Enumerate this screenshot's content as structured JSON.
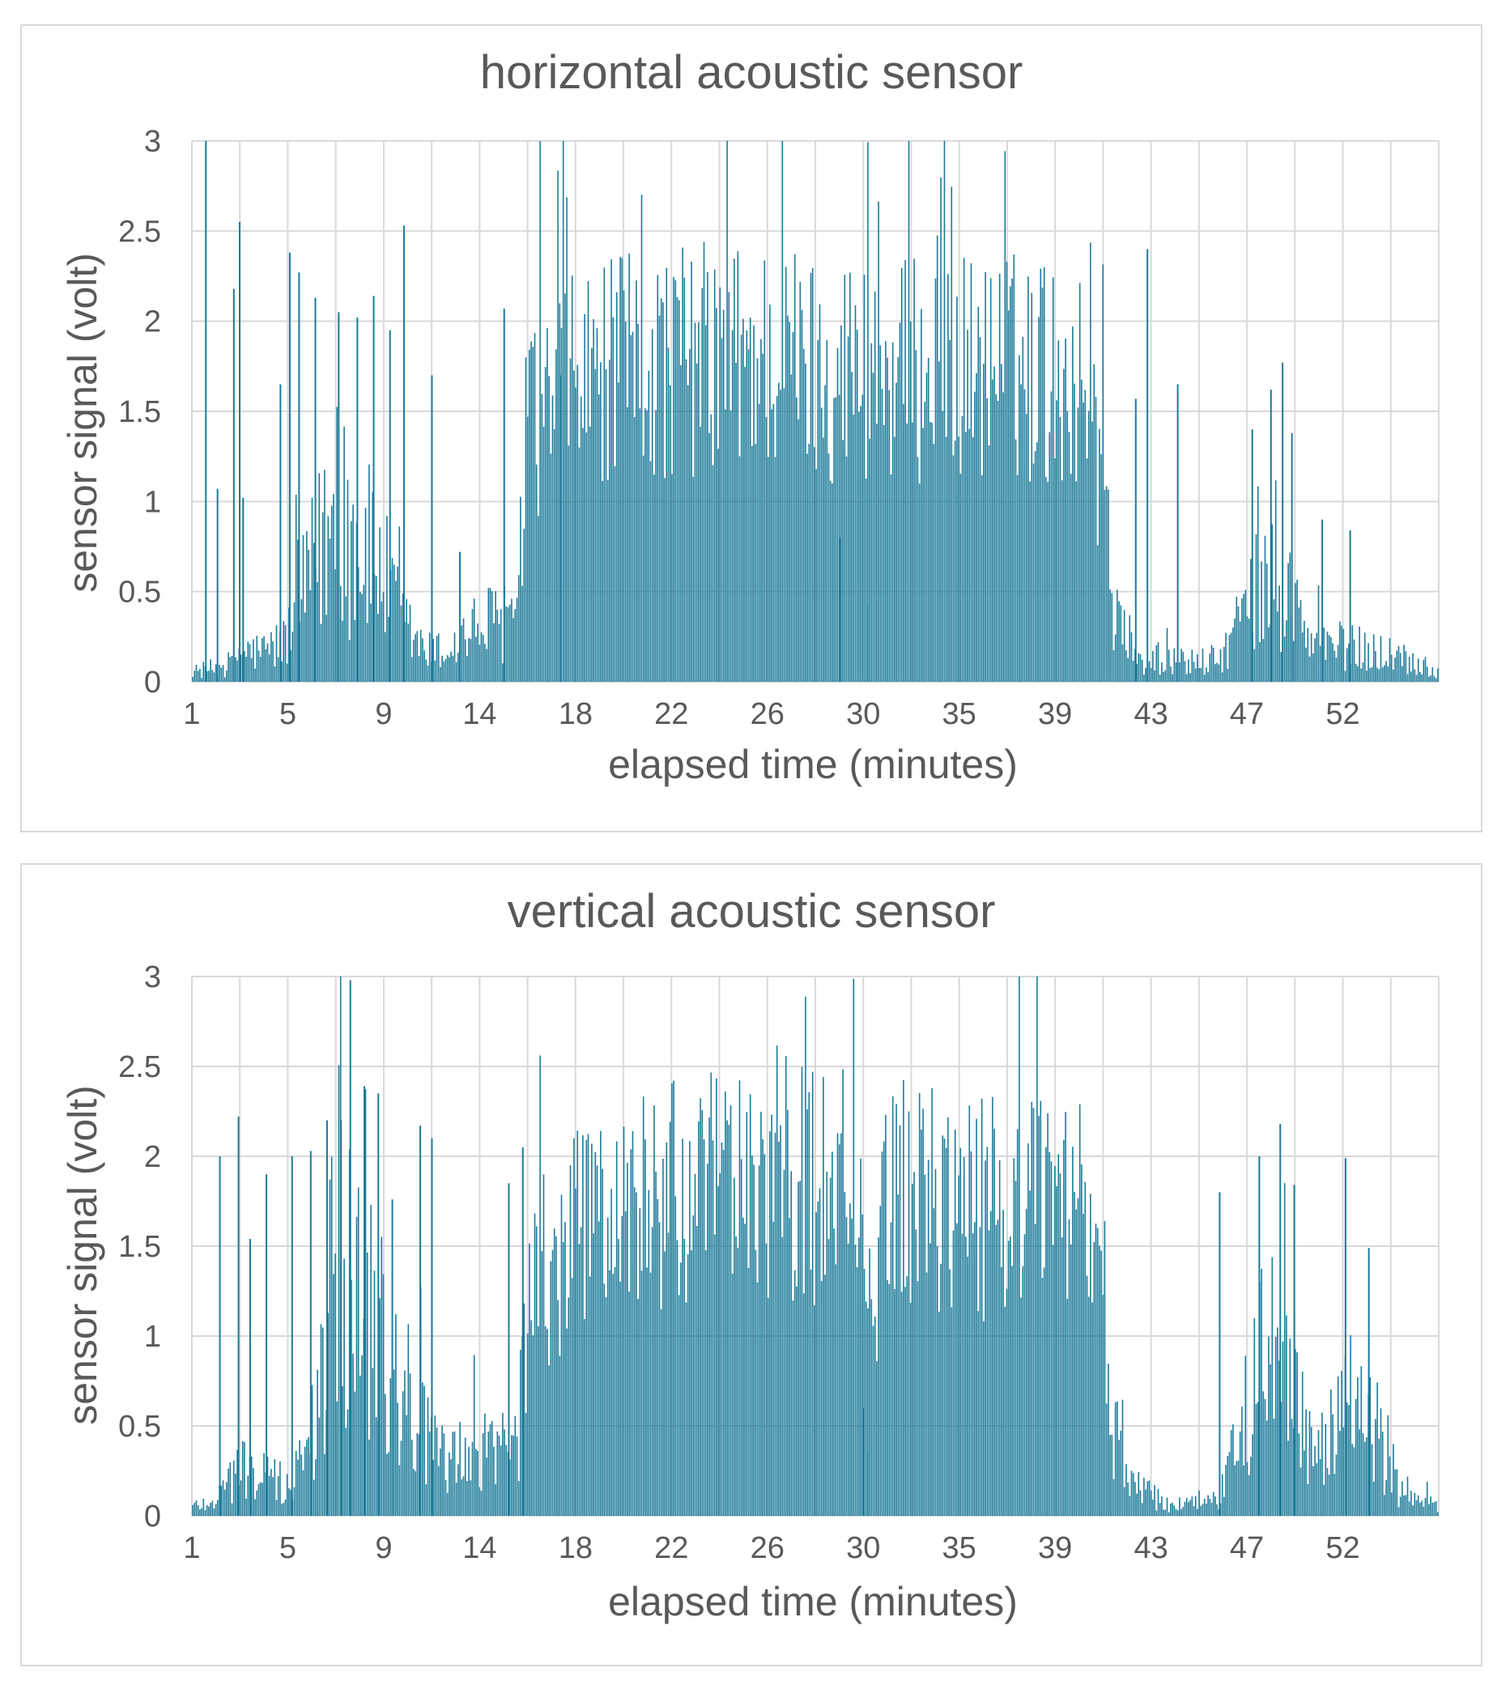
{
  "chart_data": [
    {
      "type": "bar",
      "title": "horizontal acoustic sensor",
      "xlabel": "elapsed time (minutes)",
      "ylabel": "sensor signal (volt)",
      "x_tick_labels": [
        "1",
        "5",
        "9",
        "14",
        "18",
        "22",
        "26",
        "30",
        "35",
        "39",
        "43",
        "47",
        "52"
      ],
      "y_tick_labels": [
        "0",
        "0.5",
        "1",
        "1.5",
        "2",
        "2.5",
        "3"
      ],
      "xlim": [
        1,
        54.5
      ],
      "ylim": [
        0,
        3
      ],
      "grid": true,
      "color": "#1b7a99",
      "envelope": [
        [
          1,
          0.05
        ],
        [
          2.5,
          0.08
        ],
        [
          3,
          0.15
        ],
        [
          4,
          0.15
        ],
        [
          5,
          0.2
        ],
        [
          6,
          0.5
        ],
        [
          7,
          0.8
        ],
        [
          8,
          0.7
        ],
        [
          9,
          0.6
        ],
        [
          10,
          0.3
        ],
        [
          11,
          0.15
        ],
        [
          12,
          0.15
        ],
        [
          13,
          0.25
        ],
        [
          14,
          0.3
        ],
        [
          15,
          0.3
        ],
        [
          15.5,
          1.6
        ],
        [
          16.5,
          1.8
        ],
        [
          17.5,
          1.9
        ],
        [
          20,
          2.0
        ],
        [
          23,
          2.05
        ],
        [
          26,
          2.05
        ],
        [
          28,
          2.0
        ],
        [
          30,
          2.0
        ],
        [
          31,
          1.95
        ],
        [
          33,
          2.0
        ],
        [
          36,
          2.0
        ],
        [
          38,
          1.95
        ],
        [
          39.5,
          1.85
        ],
        [
          40.5,
          0.5
        ],
        [
          41.5,
          0.1
        ],
        [
          45,
          0.1
        ],
        [
          46,
          0.3
        ],
        [
          47,
          0.5
        ],
        [
          48,
          0.45
        ],
        [
          49,
          0.2
        ],
        [
          52,
          0.15
        ],
        [
          53,
          0.12
        ],
        [
          54.5,
          0.05
        ]
      ],
      "spikes": [
        [
          1.6,
          3.0
        ],
        [
          2.1,
          1.07
        ],
        [
          2.8,
          2.18
        ],
        [
          3.05,
          2.55
        ],
        [
          3.2,
          1.02
        ],
        [
          4.8,
          1.65
        ],
        [
          5.2,
          2.38
        ],
        [
          5.6,
          2.27
        ],
        [
          6.3,
          2.13
        ],
        [
          7.3,
          2.05
        ],
        [
          8.1,
          2.02
        ],
        [
          8.8,
          2.14
        ],
        [
          9.5,
          1.95
        ],
        [
          10.1,
          2.53
        ],
        [
          11.3,
          1.7
        ],
        [
          12.5,
          0.72
        ],
        [
          14.4,
          2.07
        ],
        [
          41.5,
          1.57
        ],
        [
          42.0,
          2.4
        ],
        [
          43.3,
          1.65
        ],
        [
          46.5,
          1.4
        ],
        [
          47.3,
          1.62
        ],
        [
          47.8,
          1.77
        ],
        [
          48.2,
          1.38
        ],
        [
          49.5,
          0.9
        ],
        [
          50.7,
          0.84
        ]
      ],
      "gaps": [
        [
          30.0,
          0.42
        ],
        [
          28.8,
          0.8
        ],
        [
          16.8,
          1.7
        ]
      ]
    },
    {
      "type": "bar",
      "title": "vertical acoustic sensor",
      "xlabel": "elapsed time (minutes)",
      "ylabel": "sensor signal (volt)",
      "x_tick_labels": [
        "1",
        "5",
        "9",
        "14",
        "18",
        "22",
        "26",
        "30",
        "35",
        "39",
        "43",
        "47",
        "52"
      ],
      "y_tick_labels": [
        "0",
        "0.5",
        "1",
        "1.5",
        "2",
        "2.5",
        "3"
      ],
      "xlim": [
        1,
        54.5
      ],
      "ylim": [
        0,
        3
      ],
      "grid": true,
      "color": "#1b7a99",
      "envelope": [
        [
          1,
          0.05
        ],
        [
          2,
          0.08
        ],
        [
          3,
          0.25
        ],
        [
          4,
          0.2
        ],
        [
          5,
          0.15
        ],
        [
          6,
          0.3
        ],
        [
          7,
          1.1
        ],
        [
          8,
          1.2
        ],
        [
          9,
          1.0
        ],
        [
          10,
          0.7
        ],
        [
          11,
          0.4
        ],
        [
          12,
          0.25
        ],
        [
          13,
          0.3
        ],
        [
          14,
          0.35
        ],
        [
          15,
          0.4
        ],
        [
          15.5,
          1.5
        ],
        [
          16.5,
          1.4
        ],
        [
          17.5,
          1.8
        ],
        [
          20,
          2.0
        ],
        [
          23,
          2.05
        ],
        [
          26,
          2.2
        ],
        [
          28,
          2.05
        ],
        [
          29.5,
          2.0
        ],
        [
          30,
          1.2
        ],
        [
          31,
          2.1
        ],
        [
          33,
          2.0
        ],
        [
          36,
          1.95
        ],
        [
          38,
          1.95
        ],
        [
          39.5,
          1.9
        ],
        [
          40.5,
          0.5
        ],
        [
          41.5,
          0.15
        ],
        [
          43,
          0.05
        ],
        [
          45,
          0.1
        ],
        [
          46,
          0.4
        ],
        [
          47,
          0.8
        ],
        [
          48,
          0.7
        ],
        [
          49,
          0.3
        ],
        [
          50,
          0.4
        ],
        [
          51,
          0.6
        ],
        [
          52,
          0.4
        ],
        [
          53,
          0.1
        ],
        [
          54.5,
          0.05
        ]
      ],
      "spikes": [
        [
          2.2,
          2.0
        ],
        [
          3.0,
          2.22
        ],
        [
          3.5,
          1.54
        ],
        [
          4.2,
          1.9
        ],
        [
          5.3,
          2.0
        ],
        [
          6.1,
          2.03
        ],
        [
          6.8,
          2.2
        ],
        [
          7.4,
          2.2
        ],
        [
          7.8,
          2.98
        ],
        [
          8.4,
          2.39
        ],
        [
          9.0,
          2.35
        ],
        [
          9.6,
          1.76
        ],
        [
          10.8,
          2.17
        ],
        [
          11.3,
          2.1
        ],
        [
          14.6,
          1.85
        ],
        [
          15.2,
          2.05
        ],
        [
          45.1,
          1.8
        ],
        [
          46.8,
          2.0
        ],
        [
          47.7,
          2.18
        ],
        [
          48.3,
          1.84
        ],
        [
          50.5,
          1.99
        ],
        [
          51.5,
          1.49
        ]
      ],
      "gaps": [
        [
          30.0,
          0.35
        ],
        [
          29.8,
          0.6
        ]
      ]
    }
  ]
}
